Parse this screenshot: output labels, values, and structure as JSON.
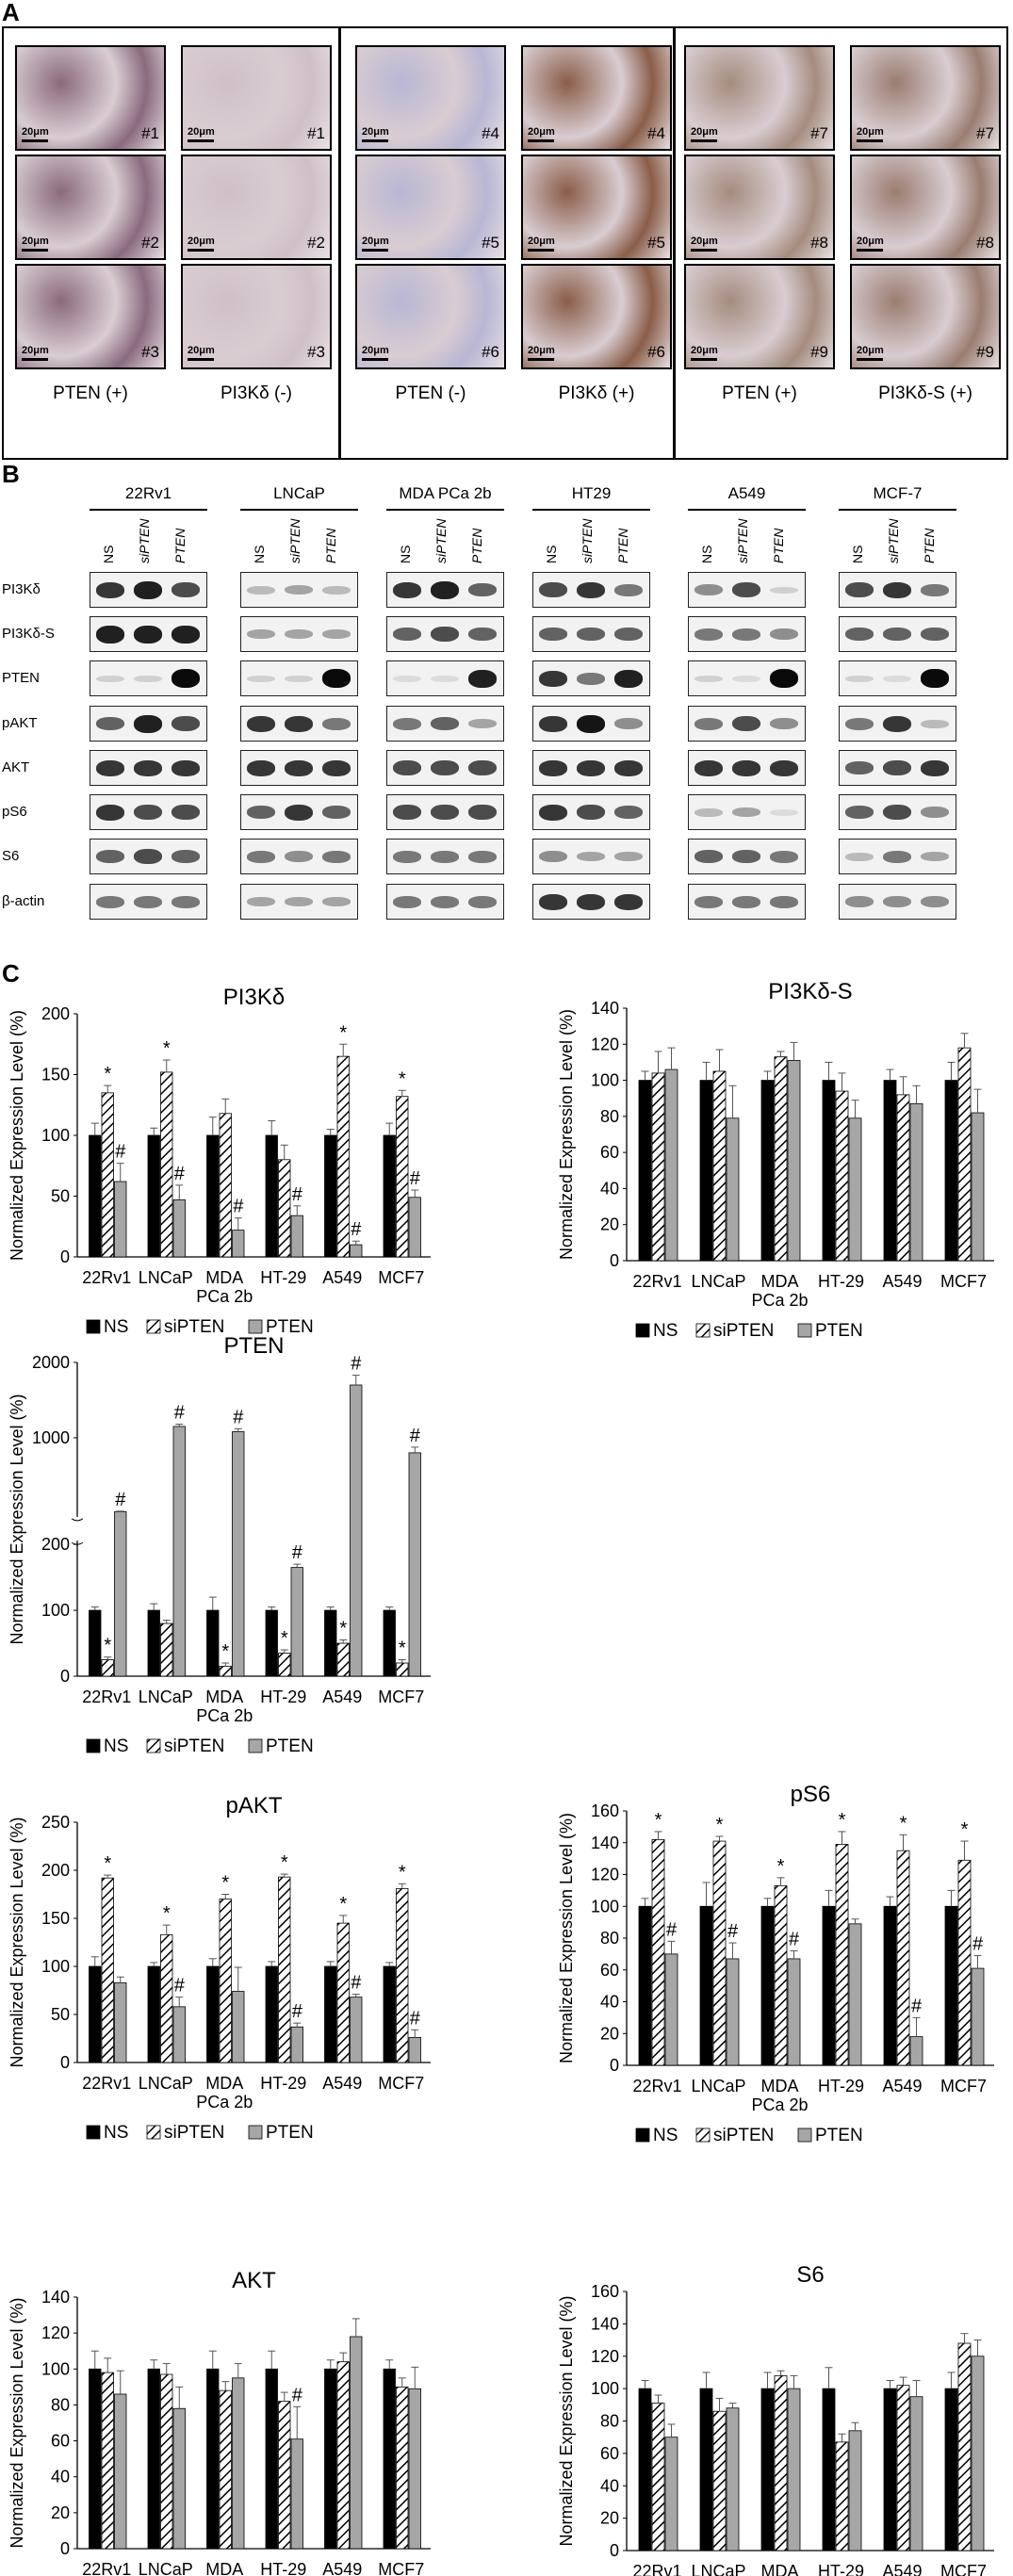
{
  "panel_labels": {
    "a": "A",
    "b": "B",
    "c": "C"
  },
  "panel_a": {
    "scale_label": "20μm",
    "groups": [
      {
        "captions": [
          "PTEN (+)",
          "PI3Kδ (-)"
        ],
        "cases": [
          "#1",
          "#2",
          "#3"
        ],
        "tints": [
          "#8a6a7e",
          "#cfc0c8"
        ]
      },
      {
        "captions": [
          "PTEN (-)",
          "PI3Kδ (+)"
        ],
        "cases": [
          "#4",
          "#5",
          "#6"
        ],
        "tints": [
          "#b8b6d4",
          "#8a5d48"
        ]
      },
      {
        "captions": [
          "PTEN (+)",
          "PI3Kδ-S (+)"
        ],
        "cases": [
          "#7",
          "#8",
          "#9"
        ],
        "tints": [
          "#a58c7e",
          "#9a7d70"
        ]
      }
    ]
  },
  "panel_b": {
    "cell_lines": [
      "22Rv1",
      "LNCaP",
      "MDA PCa 2b",
      "HT29",
      "A549",
      "MCF-7"
    ],
    "lanes": [
      {
        "text": "NS",
        "italic": false
      },
      {
        "text": "siPTEN",
        "italic": true
      },
      {
        "text": "PTEN",
        "italic": true
      }
    ],
    "proteins": [
      "PI3Kδ",
      "PI3Kδ-S",
      "PTEN",
      "pAKT",
      "AKT",
      "pS6",
      "S6",
      "β-actin"
    ]
  },
  "charts_common": {
    "ylabel": "Normalized Expression Level (%)",
    "categories": [
      "22Rv1",
      "LNCaP",
      "MDA",
      "HT-29",
      "A549",
      "MCF7"
    ],
    "category_sub": [
      "",
      "",
      "PCa 2b",
      "",
      "",
      ""
    ],
    "legend": [
      "NS",
      "siPTEN",
      "PTEN"
    ],
    "colors": {
      "NS": "#000000",
      "siPTEN": "#ffffff",
      "PTEN": "#a6a6a6"
    }
  },
  "chart_data": [
    {
      "id": "pi3kd",
      "type": "bar",
      "title": "PI3Kδ",
      "ylim": [
        0,
        200
      ],
      "yticks": [
        0,
        50,
        100,
        150,
        200
      ],
      "series": [
        {
          "name": "NS",
          "values": [
            100,
            100,
            100,
            100,
            100,
            100
          ],
          "errors": [
            10,
            6,
            15,
            12,
            5,
            10
          ]
        },
        {
          "name": "siPTEN",
          "values": [
            135,
            152,
            118,
            80,
            165,
            132
          ],
          "errors": [
            6,
            10,
            12,
            12,
            10,
            5
          ]
        },
        {
          "name": "PTEN",
          "values": [
            62,
            47,
            22,
            34,
            10,
            49
          ],
          "errors": [
            15,
            12,
            10,
            8,
            3,
            6
          ]
        }
      ],
      "marks": {
        "siPTEN": [
          "*",
          "*",
          "",
          "",
          "*",
          "*"
        ],
        "PTEN": [
          "#",
          "#",
          "#",
          "#",
          "#",
          "#"
        ]
      }
    },
    {
      "id": "pi3kds",
      "type": "bar",
      "title": "PI3Kδ-S",
      "ylim": [
        0,
        140
      ],
      "yticks": [
        0,
        20,
        40,
        60,
        80,
        100,
        120,
        140
      ],
      "series": [
        {
          "name": "NS",
          "values": [
            100,
            100,
            100,
            100,
            100,
            100
          ],
          "errors": [
            5,
            10,
            5,
            10,
            6,
            10
          ]
        },
        {
          "name": "siPTEN",
          "values": [
            104,
            105,
            113,
            94,
            92,
            118
          ],
          "errors": [
            12,
            12,
            3,
            10,
            10,
            8
          ]
        },
        {
          "name": "PTEN",
          "values": [
            106,
            79,
            111,
            79,
            87,
            82
          ],
          "errors": [
            12,
            18,
            10,
            10,
            10,
            13
          ]
        }
      ],
      "marks": {
        "siPTEN": [
          "",
          "",
          "",
          "",
          "",
          ""
        ],
        "PTEN": [
          "",
          "",
          "",
          "",
          "",
          ""
        ]
      }
    },
    {
      "id": "pten",
      "type": "bar",
      "title": "PTEN",
      "broken_axis": true,
      "yticks": [
        0,
        100,
        200,
        1000,
        2000
      ],
      "series": [
        {
          "name": "NS",
          "values": [
            100,
            100,
            100,
            100,
            100,
            100
          ],
          "errors": [
            5,
            10,
            20,
            5,
            5,
            5
          ]
        },
        {
          "name": "siPTEN",
          "values": [
            25,
            80,
            15,
            35,
            50,
            20
          ],
          "errors": [
            4,
            5,
            5,
            5,
            5,
            5
          ]
        },
        {
          "name": "PTEN",
          "values": [
            215,
            1150,
            1080,
            165,
            1700,
            840
          ],
          "errors": [
            5,
            30,
            40,
            5,
            130,
            60
          ]
        }
      ],
      "marks": {
        "siPTEN": [
          "*",
          "",
          "*",
          "*",
          "*",
          "*"
        ],
        "PTEN": [
          "#",
          "#",
          "#",
          "#",
          "#",
          "#"
        ]
      }
    },
    {
      "id": "pakt",
      "type": "bar",
      "title": "pAKT",
      "ylim": [
        0,
        250
      ],
      "yticks": [
        0,
        50,
        100,
        150,
        200,
        250
      ],
      "series": [
        {
          "name": "NS",
          "values": [
            100,
            100,
            100,
            100,
            100,
            100
          ],
          "errors": [
            10,
            4,
            8,
            5,
            5,
            4
          ]
        },
        {
          "name": "siPTEN",
          "values": [
            192,
            133,
            170,
            193,
            145,
            181
          ],
          "errors": [
            3,
            10,
            5,
            3,
            8,
            5
          ]
        },
        {
          "name": "PTEN",
          "values": [
            83,
            58,
            74,
            37,
            68,
            26
          ],
          "errors": [
            6,
            10,
            25,
            4,
            3,
            8
          ]
        }
      ],
      "marks": {
        "siPTEN": [
          "*",
          "*",
          "*",
          "*",
          "*",
          "*"
        ],
        "PTEN": [
          "",
          "#",
          "",
          "#",
          "#",
          "#"
        ]
      }
    },
    {
      "id": "ps6",
      "type": "bar",
      "title": "pS6",
      "ylim": [
        0,
        160
      ],
      "yticks": [
        0,
        20,
        40,
        60,
        80,
        100,
        120,
        140,
        160
      ],
      "series": [
        {
          "name": "NS",
          "values": [
            100,
            100,
            100,
            100,
            100,
            100
          ],
          "errors": [
            5,
            15,
            5,
            10,
            6,
            10
          ]
        },
        {
          "name": "siPTEN",
          "values": [
            142,
            141,
            113,
            139,
            135,
            129
          ],
          "errors": [
            5,
            3,
            5,
            8,
            10,
            12
          ]
        },
        {
          "name": "PTEN",
          "values": [
            70,
            67,
            67,
            89,
            18,
            61
          ],
          "errors": [
            8,
            10,
            5,
            3,
            12,
            8
          ]
        }
      ],
      "marks": {
        "siPTEN": [
          "*",
          "*",
          "*",
          "*",
          "*",
          "*"
        ],
        "PTEN": [
          "#",
          "#",
          "#",
          "",
          "#",
          "#"
        ]
      }
    },
    {
      "id": "akt",
      "type": "bar",
      "title": "AKT",
      "ylim": [
        0,
        140
      ],
      "yticks": [
        0,
        20,
        40,
        60,
        80,
        100,
        120,
        140
      ],
      "series": [
        {
          "name": "NS",
          "values": [
            100,
            100,
            100,
            100,
            100,
            100
          ],
          "errors": [
            10,
            5,
            10,
            10,
            5,
            5
          ]
        },
        {
          "name": "siPTEN",
          "values": [
            98,
            97,
            88,
            82,
            104,
            90
          ],
          "errors": [
            8,
            6,
            5,
            5,
            5,
            5
          ]
        },
        {
          "name": "PTEN",
          "values": [
            86,
            78,
            95,
            61,
            118,
            89
          ],
          "errors": [
            13,
            12,
            8,
            18,
            10,
            12
          ]
        }
      ],
      "marks": {
        "siPTEN": [
          "",
          "",
          "",
          "",
          "",
          ""
        ],
        "PTEN": [
          "",
          "",
          "",
          "#",
          "",
          ""
        ]
      }
    },
    {
      "id": "s6",
      "type": "bar",
      "title": "S6",
      "ylim": [
        0,
        160
      ],
      "yticks": [
        0,
        20,
        40,
        60,
        80,
        100,
        120,
        140,
        160
      ],
      "series": [
        {
          "name": "NS",
          "values": [
            100,
            100,
            100,
            100,
            100,
            100
          ],
          "errors": [
            5,
            10,
            10,
            13,
            5,
            10
          ]
        },
        {
          "name": "siPTEN",
          "values": [
            91,
            86,
            108,
            67,
            102,
            128
          ],
          "errors": [
            5,
            8,
            3,
            5,
            5,
            6
          ]
        },
        {
          "name": "PTEN",
          "values": [
            70,
            88,
            100,
            74,
            95,
            120
          ],
          "errors": [
            8,
            3,
            8,
            5,
            10,
            10
          ]
        }
      ],
      "marks": {
        "siPTEN": [
          "",
          "",
          "",
          "",
          "",
          ""
        ],
        "PTEN": [
          "",
          "",
          "",
          "",
          "",
          ""
        ]
      }
    }
  ]
}
